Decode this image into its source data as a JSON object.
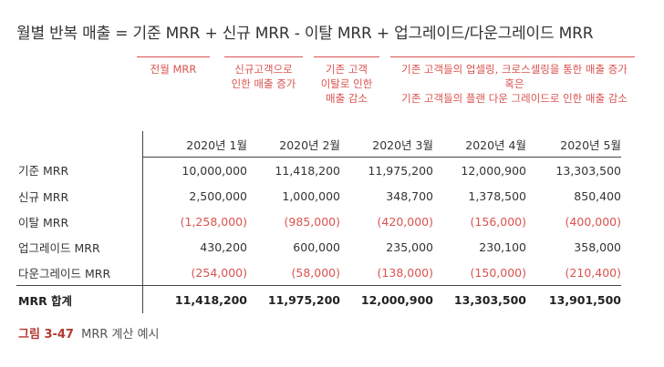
{
  "formula": "월별 반복 매출 = 기준 MRR + 신규 MRR - 이탈 MRR + 업그레이드/다운그레이드 MRR",
  "notes": {
    "previous": [
      "전월 MRR"
    ],
    "new": [
      "신규고객으로",
      "인한 매출 증가"
    ],
    "churn": [
      "기존 고객",
      "이탈로 인한",
      "매출 감소"
    ],
    "expansion": [
      "기존 고객들의 업셀링, 크로스셀링을 통한 매출 증가",
      "혹은",
      "기존 고객들의 플랜 다운 그레이드로 인한 매출 감소"
    ]
  },
  "colors": {
    "accent": "#d9534f",
    "caption_accent": "#b03a2e",
    "text": "#333333"
  },
  "table": {
    "columns": [
      "2020년 1월",
      "2020년 2월",
      "2020년 3월",
      "2020년 4월",
      "2020년 5월"
    ],
    "rows": [
      {
        "label": "기준 MRR",
        "values": [
          "10,000,000",
          "11,418,200",
          "11,975,200",
          "12,000,900",
          "13,303,500"
        ],
        "negative": false
      },
      {
        "label": "신규 MRR",
        "values": [
          "2,500,000",
          "1,000,000",
          "348,700",
          "1,378,500",
          "850,400"
        ],
        "negative": false
      },
      {
        "label": "이탈 MRR",
        "values": [
          "(1,258,000)",
          "(985,000)",
          "(420,000)",
          "(156,000)",
          "(400,000)"
        ],
        "negative": true
      },
      {
        "label": "업그레이드 MRR",
        "values": [
          "430,200",
          "600,000",
          "235,000",
          "230,100",
          "358,000"
        ],
        "negative": false
      },
      {
        "label": "다운그레이드 MRR",
        "values": [
          "(254,000)",
          "(58,000)",
          "(138,000)",
          "(150,000)",
          "(210,400)"
        ],
        "negative": true
      }
    ],
    "total": {
      "label": "MRR 합계",
      "values": [
        "11,418,200",
        "11,975,200",
        "12,000,900",
        "13,303,500",
        "13,901,500"
      ]
    }
  },
  "caption": {
    "figure": "그림 3-47",
    "text": "MRR 계산 예시"
  }
}
